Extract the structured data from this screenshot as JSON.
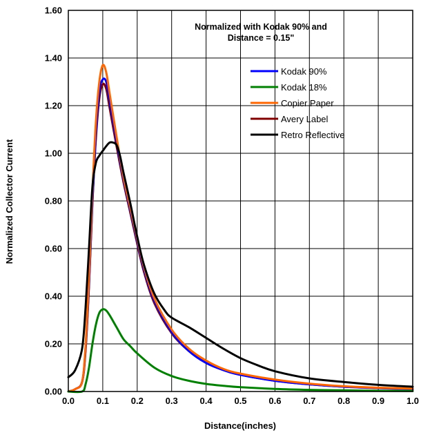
{
  "chart_data": {
    "type": "line",
    "title": "",
    "annotation": [
      "Normalized with Kodak 90% and",
      "Distance = 0.15\""
    ],
    "xlabel": "Distance(inches)",
    "ylabel": "Normalized Collector Current",
    "xlim": [
      0,
      1.0
    ],
    "ylim": [
      0,
      1.6
    ],
    "xticks": [
      0.0,
      0.1,
      0.2,
      0.3,
      0.4,
      0.5,
      0.6,
      0.7,
      0.8,
      0.9,
      1.0
    ],
    "xtick_labels": [
      "0.0",
      "0.1",
      "0.2",
      "0.3",
      "0.4",
      "0.5",
      "0.6",
      "0.7",
      "0.8",
      "0.9",
      "1.0"
    ],
    "yticks": [
      0,
      0.2,
      0.4,
      0.6,
      0.8,
      1.0,
      1.2,
      1.4,
      1.6
    ],
    "ytick_labels": [
      "0.00",
      "0.20",
      "0.40",
      "0.60",
      "0.80",
      "1.00",
      "1.20",
      "1.40",
      "1.60"
    ],
    "grid": true,
    "legend_position": "top-right",
    "series": [
      {
        "name": "Kodak 90%",
        "color": "#0000ff",
        "points": [
          [
            0,
            0
          ],
          [
            0.02,
            0.01
          ],
          [
            0.04,
            0.04
          ],
          [
            0.05,
            0.18
          ],
          [
            0.06,
            0.45
          ],
          [
            0.07,
            0.8
          ],
          [
            0.08,
            1.08
          ],
          [
            0.09,
            1.26
          ],
          [
            0.1,
            1.31
          ],
          [
            0.11,
            1.3
          ],
          [
            0.12,
            1.22
          ],
          [
            0.14,
            1.05
          ],
          [
            0.16,
            0.89
          ],
          [
            0.18,
            0.76
          ],
          [
            0.2,
            0.63
          ],
          [
            0.22,
            0.51
          ],
          [
            0.25,
            0.38
          ],
          [
            0.3,
            0.25
          ],
          [
            0.35,
            0.17
          ],
          [
            0.4,
            0.12
          ],
          [
            0.45,
            0.09
          ],
          [
            0.5,
            0.07
          ],
          [
            0.6,
            0.045
          ],
          [
            0.7,
            0.03
          ],
          [
            0.8,
            0.02
          ],
          [
            0.9,
            0.015
          ],
          [
            1.0,
            0.01
          ]
        ]
      },
      {
        "name": "Kodak 18%",
        "color": "#008000",
        "points": [
          [
            0,
            0
          ],
          [
            0.04,
            0.0
          ],
          [
            0.05,
            0.03
          ],
          [
            0.06,
            0.1
          ],
          [
            0.07,
            0.2
          ],
          [
            0.08,
            0.28
          ],
          [
            0.09,
            0.33
          ],
          [
            0.1,
            0.345
          ],
          [
            0.11,
            0.34
          ],
          [
            0.12,
            0.32
          ],
          [
            0.14,
            0.27
          ],
          [
            0.16,
            0.22
          ],
          [
            0.18,
            0.19
          ],
          [
            0.2,
            0.16
          ],
          [
            0.25,
            0.1
          ],
          [
            0.3,
            0.065
          ],
          [
            0.35,
            0.045
          ],
          [
            0.4,
            0.032
          ],
          [
            0.45,
            0.024
          ],
          [
            0.5,
            0.018
          ],
          [
            0.6,
            0.011
          ],
          [
            0.7,
            0.007
          ],
          [
            0.8,
            0.005
          ],
          [
            0.9,
            0.003
          ],
          [
            1.0,
            0.002
          ]
        ]
      },
      {
        "name": "Copier Paper",
        "color": "#ff6600",
        "points": [
          [
            0,
            0
          ],
          [
            0.02,
            0.01
          ],
          [
            0.04,
            0.04
          ],
          [
            0.05,
            0.19
          ],
          [
            0.06,
            0.48
          ],
          [
            0.07,
            0.84
          ],
          [
            0.08,
            1.13
          ],
          [
            0.09,
            1.3
          ],
          [
            0.1,
            1.37
          ],
          [
            0.11,
            1.34
          ],
          [
            0.12,
            1.25
          ],
          [
            0.14,
            1.07
          ],
          [
            0.16,
            0.9
          ],
          [
            0.18,
            0.77
          ],
          [
            0.2,
            0.64
          ],
          [
            0.22,
            0.52
          ],
          [
            0.25,
            0.39
          ],
          [
            0.3,
            0.26
          ],
          [
            0.35,
            0.18
          ],
          [
            0.4,
            0.13
          ],
          [
            0.45,
            0.095
          ],
          [
            0.5,
            0.075
          ],
          [
            0.6,
            0.05
          ],
          [
            0.7,
            0.033
          ],
          [
            0.8,
            0.022
          ],
          [
            0.9,
            0.016
          ],
          [
            1.0,
            0.012
          ]
        ]
      },
      {
        "name": "Avery Label",
        "color": "#800000",
        "points": [
          [
            0,
            0
          ],
          [
            0.02,
            0.01
          ],
          [
            0.04,
            0.04
          ],
          [
            0.05,
            0.17
          ],
          [
            0.06,
            0.44
          ],
          [
            0.07,
            0.79
          ],
          [
            0.08,
            1.06
          ],
          [
            0.09,
            1.23
          ],
          [
            0.1,
            1.29
          ],
          [
            0.11,
            1.27
          ],
          [
            0.12,
            1.19
          ],
          [
            0.14,
            1.03
          ],
          [
            0.16,
            0.88
          ],
          [
            0.18,
            0.75
          ],
          [
            0.2,
            0.62
          ],
          [
            0.22,
            0.5
          ],
          [
            0.25,
            0.37
          ],
          [
            0.3,
            0.245
          ],
          [
            0.35,
            0.17
          ],
          [
            0.4,
            0.12
          ],
          [
            0.45,
            0.09
          ],
          [
            0.5,
            0.07
          ],
          [
            0.6,
            0.045
          ],
          [
            0.7,
            0.03
          ],
          [
            0.8,
            0.02
          ],
          [
            0.9,
            0.014
          ],
          [
            1.0,
            0.01
          ]
        ]
      },
      {
        "name": "Retro Reflective",
        "color": "#000000",
        "points": [
          [
            0,
            0.06
          ],
          [
            0.02,
            0.09
          ],
          [
            0.04,
            0.18
          ],
          [
            0.05,
            0.35
          ],
          [
            0.06,
            0.6
          ],
          [
            0.07,
            0.86
          ],
          [
            0.08,
            0.96
          ],
          [
            0.09,
            0.99
          ],
          [
            0.1,
            1.01
          ],
          [
            0.11,
            1.03
          ],
          [
            0.12,
            1.045
          ],
          [
            0.13,
            1.045
          ],
          [
            0.14,
            1.035
          ],
          [
            0.15,
            0.99
          ],
          [
            0.16,
            0.92
          ],
          [
            0.18,
            0.79
          ],
          [
            0.2,
            0.65
          ],
          [
            0.22,
            0.53
          ],
          [
            0.25,
            0.41
          ],
          [
            0.28,
            0.34
          ],
          [
            0.3,
            0.31
          ],
          [
            0.35,
            0.27
          ],
          [
            0.4,
            0.225
          ],
          [
            0.45,
            0.18
          ],
          [
            0.5,
            0.14
          ],
          [
            0.55,
            0.11
          ],
          [
            0.6,
            0.085
          ],
          [
            0.7,
            0.055
          ],
          [
            0.8,
            0.04
          ],
          [
            0.9,
            0.028
          ],
          [
            1.0,
            0.02
          ]
        ]
      }
    ]
  }
}
